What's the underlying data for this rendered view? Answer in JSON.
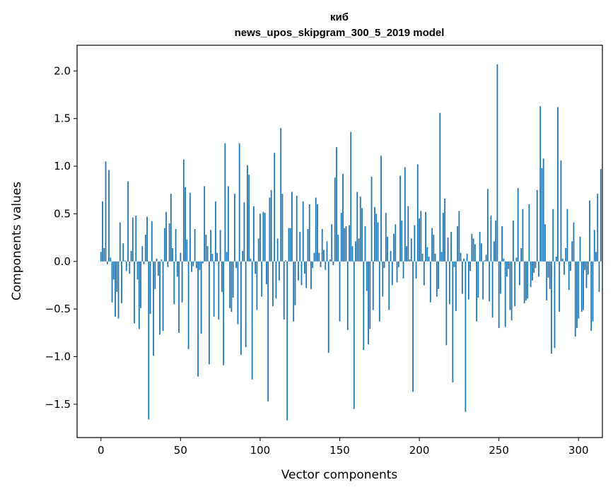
{
  "chart_data": {
    "type": "bar",
    "title_line1": "киб",
    "title_line2": "news_upos_skipgram_300_5_2019 model",
    "xlabel": "Vector components",
    "ylabel": "Components values",
    "xlim": [
      -15,
      315
    ],
    "ylim": [
      -1.85,
      2.27
    ],
    "xticks": [
      0,
      50,
      100,
      150,
      200,
      250,
      300
    ],
    "xtick_labels": [
      "0",
      "50",
      "100",
      "150",
      "200",
      "250",
      "300"
    ],
    "yticks": [
      -1.5,
      -1.0,
      -0.5,
      0.0,
      0.5,
      1.0,
      1.5,
      2.0
    ],
    "ytick_labels": [
      "−1.5",
      "−1.0",
      "−0.5",
      "0.0",
      "0.5",
      "1.0",
      "1.5",
      "2.0"
    ],
    "bar_color": "#1f77b4",
    "values": [
      0.1,
      0.63,
      0.14,
      1.05,
      -0.03,
      0.96,
      0.04,
      -0.43,
      -0.19,
      -0.58,
      -0.32,
      -0.6,
      0.41,
      -0.44,
      0.19,
      0.01,
      -0.1,
      0.84,
      -0.13,
      0.11,
      0.46,
      -0.65,
      0.48,
      -0.19,
      -0.71,
      -0.49,
      0.16,
      -0.03,
      0.28,
      0.47,
      -1.66,
      -0.55,
      0.42,
      -0.99,
      -0.29,
      0.03,
      -0.15,
      -0.77,
      0.02,
      -0.73,
      0.35,
      0.52,
      -0.06,
      0.4,
      0.71,
      0.14,
      -0.45,
      0.34,
      -0.16,
      -0.75,
      0.09,
      -0.43,
      1.07,
      0.78,
      0.23,
      -0.92,
      0.72,
      -0.11,
      -0.05,
      0.34,
      -0.07,
      -1.21,
      -0.09,
      -0.76,
      -0.02,
      0.79,
      0.28,
      0.16,
      -1.08,
      0.33,
      0.08,
      -0.58,
      0.63,
      0.09,
      -0.61,
      0.33,
      -0.32,
      -1.09,
      1.24,
      0.1,
      0.79,
      -0.49,
      -0.53,
      -0.38,
      0.71,
      -0.07,
      -0.66,
      1.24,
      -0.98,
      0.11,
      0.62,
      -0.9,
      1.01,
      0.91,
      0.03,
      -1.24,
      0.58,
      -0.13,
      -0.51,
      0.24,
      0.5,
      -0.37,
      0.52,
      0.51,
      -0.24,
      -1.47,
      0.67,
      0.75,
      -0.47,
      1.14,
      -0.39,
      0.24,
      -0.2,
      1.4,
      0.71,
      -0.61,
      0.01,
      -1.67,
      0.35,
      0.35,
      0.73,
      -0.63,
      -0.46,
      0.69,
      -0.2,
      0.31,
      -0.25,
      0.63,
      -0.13,
      -0.28,
      0.34,
      0.6,
      -0.29,
      -0.07,
      0.09,
      0.67,
      0.6,
      0.09,
      -0.06,
      0.34,
      0.12,
      -0.09,
      0.21,
      -0.96,
      0.02,
      0.39,
      -0.04,
      0.88,
      1.2,
      0.28,
      -0.63,
      0.51,
      0.92,
      0.35,
      0.37,
      -0.72,
      0.38,
      1.36,
      0.16,
      -1.55,
      0.21,
      0.73,
      0.24,
      0.68,
      0.56,
      -0.93,
      0.37,
      -0.31,
      -0.87,
      -0.71,
      0.89,
      -0.51,
      0.57,
      0.5,
      0.41,
      -0.63,
      1.11,
      -0.37,
      -0.07,
      0.51,
      0.26,
      -0.51,
      0.11,
      -0.25,
      0.29,
      0.39,
      -0.22,
      -0.06,
      0.9,
      0.43,
      -0.18,
      0.99,
      0.16,
      0.58,
      0.02,
      0.24,
      -1.37,
      0.38,
      -0.18,
      1.02,
      0.45,
      0.53,
      0.08,
      -0.25,
      0.52,
      0.15,
      0.05,
      -0.43,
      0.35,
      0.28,
      0.08,
      -0.37,
      -0.29,
      1.56,
      0.1,
      0.51,
      0.66,
      -0.88,
      0.25,
      -0.45,
      0.31,
      -1.27,
      -0.06,
      -0.52,
      0.37,
      0.53,
      0.09,
      -0.34,
      0.03,
      -1.58,
      0.08,
      -0.4,
      -0.1,
      0.29,
      0.24,
      0.18,
      -0.63,
      -0.38,
      0.31,
      0.19,
      -0.4,
      0.01,
      0.07,
      0.76,
      -0.42,
      0.48,
      -0.59,
      0.21,
      0.43,
      2.07,
      -0.7,
      -0.34,
      0.37,
      0.03,
      -0.69,
      -0.16,
      -0.08,
      -0.51,
      -0.62,
      0.43,
      -0.47,
      0.04,
      0.77,
      -0.25,
      0.14,
      0.55,
      -0.44,
      -0.41,
      -0.39,
      0.6,
      -0.27,
      -0.2,
      -0.12,
      -0.07,
      0.75,
      -0.16,
      1.63,
      0.98,
      1.08,
      0.39,
      -0.41,
      -0.17,
      -0.29,
      -0.97,
      0.55,
      -0.91,
      0.05,
      1.62,
      -0.53,
      1.06,
      0.03,
      -0.14,
      0.14,
      0.55,
      -0.3,
      -0.1,
      0.21,
      0.41,
      -0.79,
      -0.7,
      -0.6,
      0.26,
      -0.53,
      -0.51,
      -0.09,
      -0.28,
      -0.14,
      0.64,
      -0.73,
      -0.63,
      0.33,
      0.1,
      0.71,
      -0.32,
      0.97
    ]
  }
}
